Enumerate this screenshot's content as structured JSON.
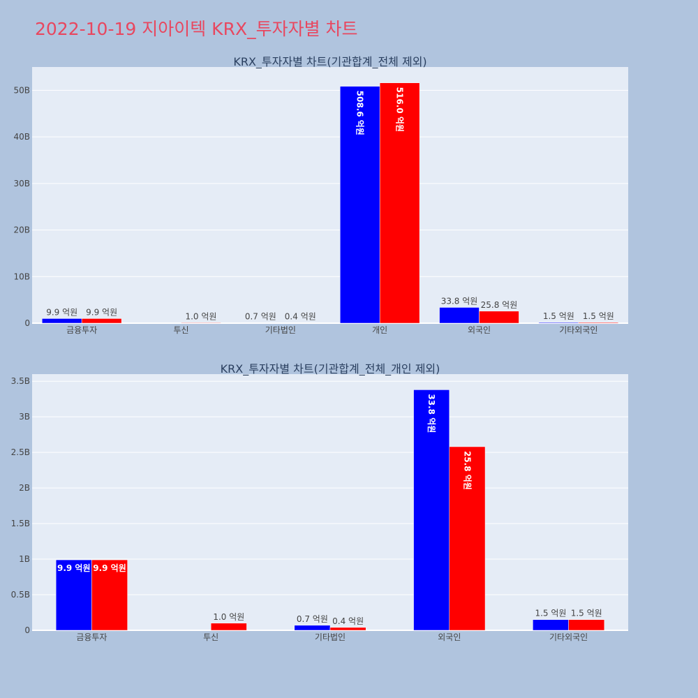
{
  "title": "2022-10-19 지아이텍 KRX_투자자별 차트",
  "colors": {
    "sell": "#0000ff",
    "buy": "#ff0000",
    "plot_bg": "#e5ecf6",
    "page_bg": "#b0c4de"
  },
  "chart_data": [
    {
      "type": "bar",
      "title": "KRX_투자자별 차트(기관합계_전체 제외)",
      "categories": [
        "금융투자",
        "투신",
        "기타법인",
        "개인",
        "외국인",
        "기타외국인"
      ],
      "ylim": [
        0,
        55000000000
      ],
      "yticks": [
        0,
        10000000000,
        20000000000,
        30000000000,
        40000000000,
        50000000000
      ],
      "ytick_labels": [
        "0",
        "10B",
        "20B",
        "30B",
        "40B",
        "50B"
      ],
      "series": [
        {
          "color": "#0000ff",
          "values": [
            990000000,
            0,
            70000000,
            50860000000,
            3380000000,
            150000000
          ],
          "labels": [
            "9.9 억원",
            "",
            "0.7 억원",
            "508.6 억원",
            "33.8 억원",
            "1.5 억원"
          ]
        },
        {
          "color": "#ff0000",
          "values": [
            990000000,
            100000000,
            40000000,
            51600000000,
            2580000000,
            150000000
          ],
          "labels": [
            "9.9 억원",
            "1.0 억원",
            "0.4 억원",
            "516.0 억원",
            "25.8 억원",
            "1.5 억원"
          ]
        }
      ]
    },
    {
      "type": "bar",
      "title": "KRX_투자자별 차트(기관합계_전체_개인 제외)",
      "categories": [
        "금융투자",
        "투신",
        "기타법인",
        "외국인",
        "기타외국인"
      ],
      "ylim": [
        0,
        3600000000
      ],
      "yticks": [
        0,
        500000000,
        1000000000,
        1500000000,
        2000000000,
        2500000000,
        3000000000,
        3500000000
      ],
      "ytick_labels": [
        "0",
        "0.5B",
        "1B",
        "1.5B",
        "2B",
        "2.5B",
        "3B",
        "3.5B"
      ],
      "series": [
        {
          "color": "#0000ff",
          "values": [
            990000000,
            0,
            70000000,
            3380000000,
            150000000
          ],
          "labels": [
            "9.9 억원",
            "",
            "0.7 억원",
            "33.8 억원",
            "1.5 억원"
          ]
        },
        {
          "color": "#ff0000",
          "values": [
            990000000,
            100000000,
            40000000,
            2580000000,
            150000000
          ],
          "labels": [
            "9.9 억원",
            "1.0 억원",
            "0.4 억원",
            "25.8 억원",
            "1.5 억원"
          ]
        }
      ]
    }
  ]
}
